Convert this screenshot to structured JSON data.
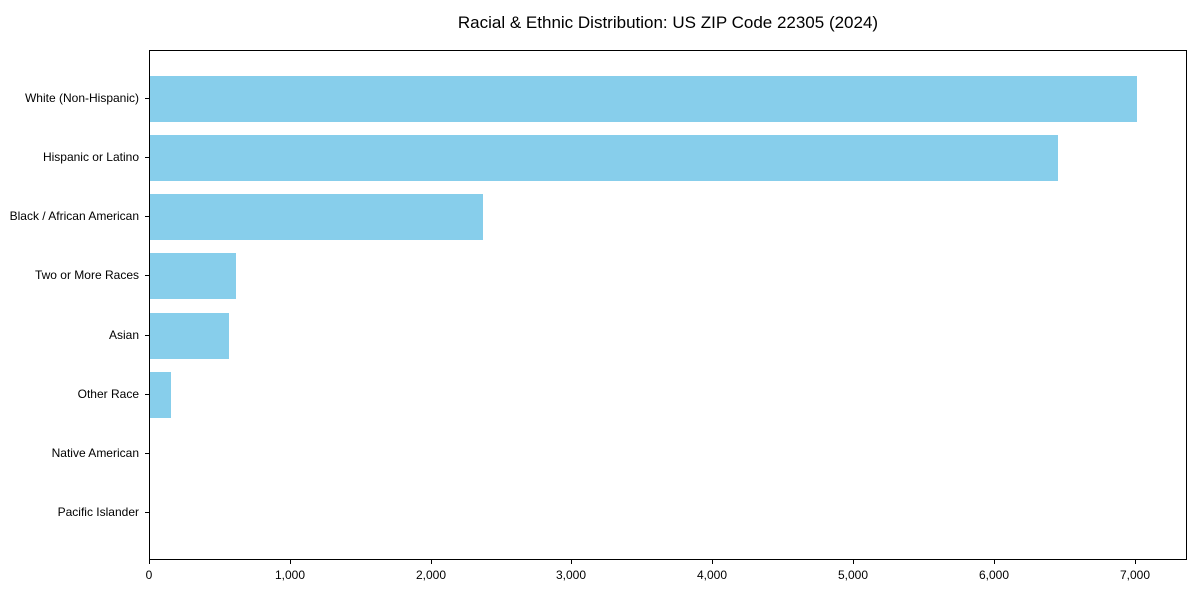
{
  "chart_data": {
    "type": "bar",
    "orientation": "horizontal",
    "title": "Racial & Ethnic Distribution: US ZIP Code 22305 (2024)",
    "categories": [
      "White (Non-Hispanic)",
      "Hispanic or Latino",
      "Black / African American",
      "Two or More Races",
      "Asian",
      "Other Race",
      "Native American",
      "Pacific Islander"
    ],
    "values": [
      7020,
      6460,
      2370,
      610,
      560,
      150,
      0,
      0
    ],
    "xlabel": "",
    "ylabel": "",
    "xlim": [
      0,
      7372
    ],
    "xticks": [
      0,
      1000,
      2000,
      3000,
      4000,
      5000,
      6000,
      7000
    ],
    "xtick_labels": [
      "0",
      "1,000",
      "2,000",
      "3,000",
      "4,000",
      "5,000",
      "6,000",
      "7,000"
    ],
    "bar_color": "#87CEEB",
    "grid": false,
    "legend_position": "none"
  }
}
